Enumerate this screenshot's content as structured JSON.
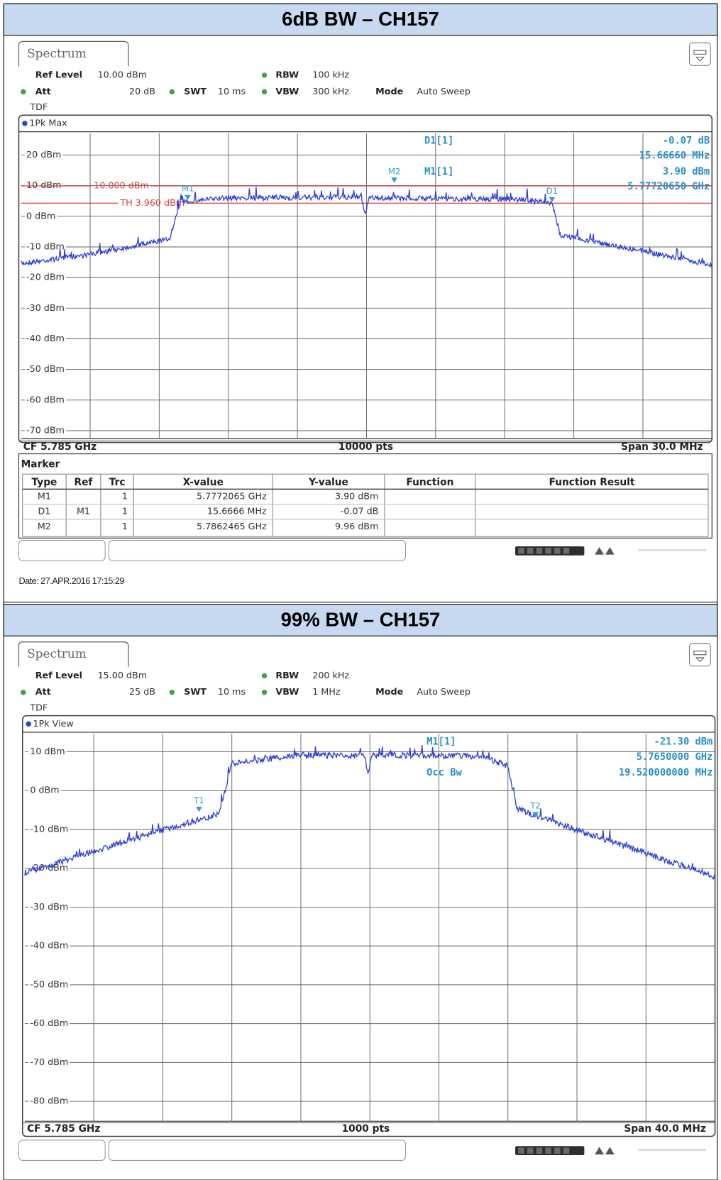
{
  "panels": [
    {
      "heading": "6dB BW – CH157",
      "tab": "Spectrum",
      "settings": {
        "ref_level_label": "Ref Level",
        "ref_level": "10.00 dBm",
        "att_label": "Att",
        "att": "20 dB",
        "swt_label": "SWT",
        "swt": "10 ms",
        "rbw_label": "RBW",
        "rbw": "100 kHz",
        "vbw_label": "VBW",
        "vbw": "300 kHz",
        "mode_label": "Mode",
        "mode": "Auto Sweep",
        "tdf": "TDF"
      },
      "trace_label": "1Pk Max",
      "y_labels": [
        "20 dBm",
        "10 dBm",
        "0 dBm",
        "-10 dBm",
        "-20 dBm",
        "-30 dBm",
        "-40 dBm",
        "-50 dBm",
        "-60 dBm",
        "-70 dBm"
      ],
      "lines": [
        "10.000 dBm",
        "TH 3.960 dBm"
      ],
      "readout": [
        {
          "label": "D1[1]",
          "value": "-0.07 dB"
        },
        {
          "value": "15.66660 MHz"
        },
        {
          "label": "M1[1]",
          "value": "3.90 dBm"
        },
        {
          "value": "5.77720650 GHz"
        }
      ],
      "plot_markers": [
        "M1",
        "M2",
        "D1"
      ],
      "footer": [
        "CF 5.785 GHz",
        "10000 pts",
        "Span 30.0 MHz"
      ],
      "marker_table": {
        "title": "Marker",
        "headers": [
          "Type",
          "Ref",
          "Trc",
          "X-value",
          "Y-value",
          "Function",
          "Function Result"
        ],
        "rows": [
          {
            "type": "M1",
            "trc": "1",
            "x": "5.7772065 GHz",
            "y": "3.90 dBm"
          },
          {
            "type": "D1",
            "ref": "M1",
            "trc": "1",
            "x": "15.6666 MHz",
            "y": "-0.07 dB"
          },
          {
            "type": "M2",
            "trc": "1",
            "x": "5.7862465 GHz",
            "y": "9.96 dBm"
          }
        ]
      },
      "date": "Date: 27.APR.2016 17:15:29"
    },
    {
      "heading": "99% BW – CH157",
      "tab": "Spectrum",
      "settings": {
        "ref_level_label": "Ref Level",
        "ref_level": "15.00 dBm",
        "att_label": "Att",
        "att": "25 dB",
        "swt_label": "SWT",
        "swt": "10 ms",
        "rbw_label": "RBW",
        "rbw": "200 kHz",
        "vbw_label": "VBW",
        "vbw": "1 MHz",
        "mode_label": "Mode",
        "mode": "Auto Sweep",
        "tdf": "TDF"
      },
      "trace_label": "1Pk View",
      "y_labels": [
        "10 dBm",
        "0 dBm",
        "-10 dBm",
        "-20 dBm",
        "-30 dBm",
        "-40 dBm",
        "-50 dBm",
        "-60 dBm",
        "-70 dBm",
        "-80 dBm"
      ],
      "readout": [
        {
          "label": "M1[1]",
          "value": "-21.30 dBm"
        },
        {
          "value": "5.7650000 GHz"
        },
        {
          "label": "Occ Bw",
          "value": "19.520000000 MHz"
        }
      ],
      "plot_markers": [
        "T1",
        "T2"
      ],
      "footer": [
        "CF 5.785 GHz",
        "1000 pts",
        "Span 40.0 MHz"
      ]
    }
  ]
}
